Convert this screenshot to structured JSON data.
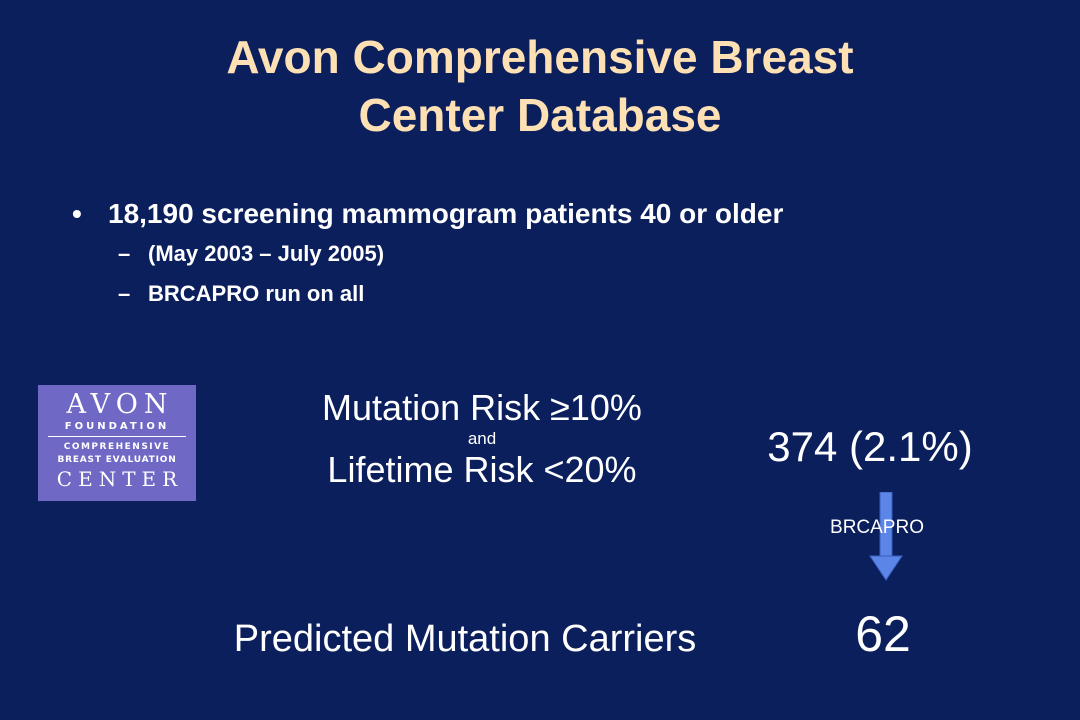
{
  "slide": {
    "title_line1": "Avon Comprehensive Breast",
    "title_line2": "Center Database",
    "bullet": {
      "marker": "•",
      "text": "18,190 screening mammogram patients 40 or older",
      "subitems": [
        {
          "marker": "–",
          "text": "(May 2003 – July 2005)"
        },
        {
          "marker": "–",
          "text": "BRCAPRO run on all"
        }
      ]
    },
    "logo": {
      "line1": "AVON",
      "line2": "FOUNDATION",
      "line3": "COMPREHENSIVE",
      "line4": "BREAST EVALUATION",
      "line5": "CENTER"
    },
    "criteria": {
      "line1": "Mutation Risk ≥10%",
      "connector": "and",
      "line2": "Lifetime Risk <20%"
    },
    "count": "374 (2.1%)",
    "arrow_label": "BRCAPRO",
    "carriers_label": "Predicted Mutation Carriers",
    "carriers_value": "62",
    "colors": {
      "background": "#0b1f5c",
      "title": "#fde0b4",
      "text": "#ffffff",
      "logo_background": "#6f68c4",
      "arrow": "#5b86e8"
    }
  }
}
